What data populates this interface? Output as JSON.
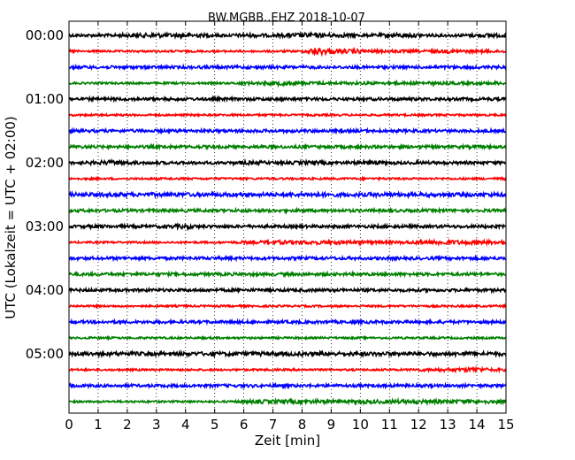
{
  "chart_data": {
    "type": "line",
    "title": "BW.MGBB..EHZ 2018-10-07",
    "xlabel": "Zeit  [min]",
    "ylabel": "UTC (Lokalzeit = UTC + 02:00)",
    "xlim": [
      0,
      15
    ],
    "x_ticks": [
      "0",
      "1",
      "2",
      "3",
      "4",
      "5",
      "6",
      "7",
      "8",
      "9",
      "10",
      "11",
      "12",
      "13",
      "14",
      "15"
    ],
    "y_ticks": [
      "00:00",
      "01:00",
      "02:00",
      "03:00",
      "04:00",
      "05:00"
    ],
    "grid": "vertical dotted",
    "traces_per_hour": 4,
    "trace_minutes": 15,
    "trace_colors": [
      "#000000",
      "#ff0000",
      "#0000ff",
      "#008000"
    ],
    "series": [
      {
        "start": "00:00",
        "color": "#000000",
        "amplitude": [
          3,
          3,
          3,
          3,
          4,
          4,
          5,
          4,
          5,
          4,
          3,
          3,
          4,
          4,
          3,
          4,
          5,
          5,
          4,
          4,
          3,
          3,
          4,
          5,
          4,
          3,
          3,
          3,
          4,
          4,
          4
        ]
      },
      {
        "start": "00:15",
        "color": "#ff0000",
        "amplitude": [
          3,
          2,
          2,
          2,
          2,
          2,
          2,
          2,
          2,
          2,
          2,
          2,
          2,
          2,
          2,
          2,
          2,
          8,
          5,
          4,
          4,
          3,
          3,
          3,
          3,
          3,
          4,
          3,
          3,
          3,
          3
        ]
      },
      {
        "start": "00:30",
        "color": "#0000ff",
        "amplitude": [
          3,
          3,
          3,
          3,
          3,
          3,
          3,
          3,
          3,
          3,
          3,
          3,
          3,
          3,
          3,
          3,
          3,
          3,
          3,
          3,
          3,
          3,
          3,
          3,
          3,
          3,
          3,
          3,
          3,
          3,
          3
        ]
      },
      {
        "start": "00:45",
        "color": "#008000",
        "amplitude": [
          2,
          2,
          2,
          2,
          2,
          2,
          2,
          2,
          2,
          2,
          2,
          2,
          3,
          3,
          4,
          5,
          3,
          3,
          3,
          3,
          3,
          3,
          3,
          3,
          3,
          3,
          3,
          3,
          3,
          3,
          3
        ]
      },
      {
        "start": "01:00",
        "color": "#000000",
        "amplitude": [
          3,
          3,
          3,
          3,
          3,
          3,
          3,
          3,
          3,
          3,
          3,
          3,
          3,
          3,
          3,
          3,
          3,
          3,
          3,
          3,
          3,
          3,
          3,
          3,
          3,
          3,
          3,
          3,
          3,
          3,
          3
        ]
      },
      {
        "start": "01:15",
        "color": "#ff0000",
        "amplitude": [
          2,
          2,
          2,
          2,
          2,
          2,
          2,
          2,
          2,
          2,
          2,
          2,
          2,
          2,
          2,
          2,
          2,
          2,
          2,
          2,
          2,
          2,
          2,
          2,
          2,
          2,
          2,
          2,
          2,
          2,
          2
        ]
      },
      {
        "start": "01:30",
        "color": "#0000ff",
        "amplitude": [
          3,
          3,
          3,
          3,
          3,
          3,
          3,
          3,
          3,
          3,
          3,
          3,
          3,
          3,
          3,
          3,
          3,
          3,
          3,
          3,
          3,
          3,
          3,
          3,
          3,
          3,
          3,
          3,
          3,
          3,
          3
        ]
      },
      {
        "start": "01:45",
        "color": "#008000",
        "amplitude": [
          3,
          3,
          3,
          3,
          3,
          3,
          3,
          3,
          3,
          3,
          3,
          3,
          3,
          3,
          3,
          3,
          3,
          3,
          3,
          3,
          3,
          3,
          3,
          3,
          3,
          3,
          3,
          3,
          3,
          3,
          3
        ]
      },
      {
        "start": "02:00",
        "color": "#000000",
        "amplitude": [
          3,
          3,
          4,
          5,
          4,
          3,
          3,
          3,
          3,
          3,
          3,
          3,
          4,
          4,
          3,
          3,
          4,
          4,
          3,
          3,
          4,
          4,
          3,
          3,
          3,
          3,
          3,
          3,
          3,
          3,
          3
        ]
      },
      {
        "start": "02:15",
        "color": "#ff0000",
        "amplitude": [
          2,
          2,
          2,
          2,
          2,
          2,
          2,
          2,
          2,
          2,
          2,
          2,
          2,
          2,
          2,
          2,
          2,
          2,
          2,
          2,
          2,
          2,
          2,
          2,
          2,
          2,
          2,
          2,
          2,
          2,
          3
        ]
      },
      {
        "start": "02:30",
        "color": "#0000ff",
        "amplitude": [
          4,
          4,
          4,
          4,
          4,
          4,
          4,
          4,
          4,
          4,
          4,
          4,
          4,
          4,
          4,
          4,
          4,
          5,
          4,
          4,
          4,
          4,
          4,
          4,
          4,
          4,
          4,
          4,
          4,
          4,
          4
        ]
      },
      {
        "start": "02:45",
        "color": "#008000",
        "amplitude": [
          3,
          3,
          3,
          3,
          3,
          3,
          3,
          3,
          3,
          3,
          3,
          3,
          3,
          3,
          3,
          3,
          3,
          3,
          3,
          3,
          3,
          3,
          3,
          3,
          3,
          3,
          3,
          3,
          3,
          3,
          3
        ]
      },
      {
        "start": "03:00",
        "color": "#000000",
        "amplitude": [
          3,
          3,
          4,
          3,
          3,
          3,
          3,
          4,
          5,
          3,
          3,
          3,
          3,
          3,
          3,
          3,
          3,
          3,
          3,
          3,
          3,
          3,
          3,
          3,
          3,
          3,
          3,
          3,
          3,
          3,
          3
        ]
      },
      {
        "start": "03:15",
        "color": "#ff0000",
        "amplitude": [
          2,
          2,
          2,
          2,
          2,
          2,
          2,
          2,
          2,
          2,
          2,
          2,
          3,
          3,
          4,
          4,
          4,
          4,
          4,
          4,
          4,
          3,
          3,
          3,
          4,
          5,
          5,
          4,
          4,
          4,
          5
        ]
      },
      {
        "start": "03:30",
        "color": "#0000ff",
        "amplitude": [
          3,
          3,
          3,
          3,
          3,
          3,
          3,
          3,
          3,
          3,
          3,
          3,
          3,
          3,
          3,
          3,
          3,
          3,
          3,
          3,
          3,
          3,
          3,
          3,
          3,
          3,
          3,
          3,
          3,
          3,
          3
        ]
      },
      {
        "start": "03:45",
        "color": "#008000",
        "amplitude": [
          3,
          3,
          3,
          3,
          3,
          3,
          3,
          3,
          3,
          3,
          3,
          3,
          3,
          3,
          3,
          3,
          3,
          3,
          3,
          3,
          3,
          3,
          3,
          3,
          3,
          3,
          3,
          3,
          3,
          3,
          3
        ]
      },
      {
        "start": "04:00",
        "color": "#000000",
        "amplitude": [
          3,
          3,
          3,
          3,
          3,
          3,
          3,
          3,
          3,
          3,
          3,
          3,
          3,
          3,
          3,
          3,
          3,
          3,
          3,
          3,
          3,
          3,
          3,
          3,
          3,
          3,
          3,
          3,
          3,
          3,
          3
        ]
      },
      {
        "start": "04:15",
        "color": "#ff0000",
        "amplitude": [
          2,
          2,
          2,
          2,
          2,
          2,
          2,
          2,
          2,
          2,
          2,
          2,
          2,
          2,
          2,
          2,
          2,
          2,
          2,
          2,
          2,
          2,
          2,
          2,
          2,
          2,
          2,
          2,
          2,
          2,
          2
        ]
      },
      {
        "start": "04:30",
        "color": "#0000ff",
        "amplitude": [
          3,
          3,
          3,
          3,
          3,
          3,
          3,
          3,
          3,
          3,
          3,
          3,
          3,
          3,
          3,
          3,
          3,
          3,
          3,
          3,
          3,
          3,
          3,
          3,
          3,
          3,
          3,
          3,
          3,
          3,
          3
        ]
      },
      {
        "start": "04:45",
        "color": "#008000",
        "amplitude": [
          2,
          2,
          2,
          2,
          2,
          2,
          2,
          2,
          2,
          2,
          2,
          2,
          2,
          2,
          2,
          2,
          2,
          2,
          2,
          2,
          2,
          2,
          2,
          2,
          2,
          2,
          2,
          2,
          2,
          2,
          2
        ]
      },
      {
        "start": "05:00",
        "color": "#000000",
        "amplitude": [
          3,
          4,
          4,
          4,
          4,
          4,
          4,
          4,
          4,
          4,
          4,
          4,
          4,
          4,
          4,
          4,
          4,
          4,
          4,
          4,
          4,
          4,
          4,
          4,
          4,
          4,
          4,
          4,
          4,
          4,
          4
        ]
      },
      {
        "start": "05:15",
        "color": "#ff0000",
        "amplitude": [
          2,
          2,
          2,
          2,
          2,
          2,
          2,
          2,
          2,
          2,
          2,
          2,
          2,
          2,
          2,
          2,
          2,
          2,
          2,
          2,
          2,
          2,
          2,
          2,
          3,
          3,
          4,
          4,
          5,
          3,
          3
        ]
      },
      {
        "start": "05:30",
        "color": "#0000ff",
        "amplitude": [
          4,
          3,
          3,
          3,
          3,
          3,
          3,
          3,
          3,
          3,
          3,
          3,
          3,
          3,
          3,
          3,
          3,
          3,
          3,
          3,
          3,
          3,
          3,
          3,
          3,
          3,
          3,
          3,
          3,
          3,
          3
        ]
      },
      {
        "start": "05:45",
        "color": "#008000",
        "amplitude": [
          2,
          2,
          2,
          2,
          2,
          2,
          2,
          2,
          2,
          2,
          2,
          2,
          3,
          4,
          4,
          4,
          4,
          4,
          4,
          3,
          4,
          4,
          4,
          4,
          4,
          4,
          4,
          4,
          4,
          4,
          4
        ]
      }
    ]
  }
}
